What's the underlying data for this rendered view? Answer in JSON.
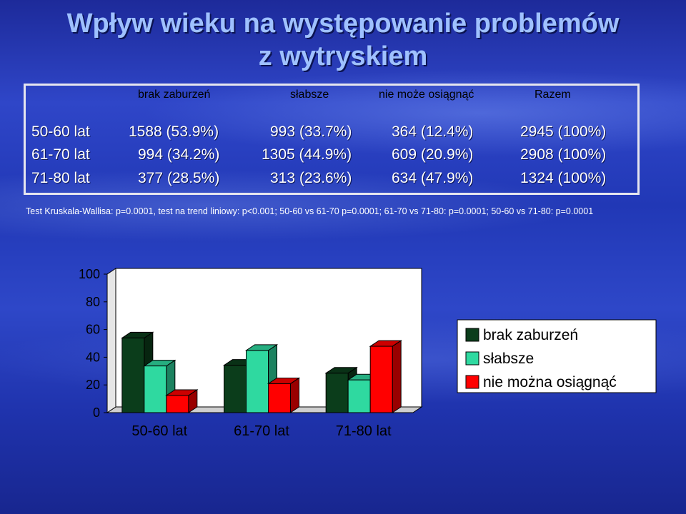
{
  "title_line1": "Wpływ wieku na występowanie problemów",
  "title_line2": "z wytryskiem",
  "table": {
    "headers": [
      "brak zaburzeń",
      "słabsze",
      "nie może osiągnąć",
      "Razem"
    ],
    "rows": [
      {
        "label": "50-60 lat",
        "c1": "1588 (53.9%)",
        "c2": "993 (33.7%)",
        "c3": "364 (12.4%)",
        "total": "2945 (100%)"
      },
      {
        "label": "61-70 lat",
        "c1": "994 (34.2%)",
        "c2": "1305 (44.9%)",
        "c3": "609 (20.9%)",
        "total": "2908 (100%)"
      },
      {
        "label": "71-80 lat",
        "c1": "377 (28.5%)",
        "c2": "313 (23.6%)",
        "c3": "634 (47.9%)",
        "total": "1324 (100%)"
      }
    ]
  },
  "note": "Test Kruskala-Wallisa: p=0.0001, test na trend liniowy: p<0.001;  50-60 vs 61-70 p=0.0001; 61-70 vs 71-80: p=0.0001; 50-60 vs 71-80: p=0.0001",
  "colors": {
    "series1": "#0b3d1b",
    "series2": "#2fd9a0",
    "series3": "#ff0000"
  },
  "chart_data": {
    "type": "bar",
    "categories": [
      "50-60 lat",
      "61-70 lat",
      "71-80 lat"
    ],
    "series": [
      {
        "name": "brak zaburzeń",
        "values": [
          53.9,
          34.2,
          28.5
        ]
      },
      {
        "name": "słabsze",
        "values": [
          33.7,
          44.9,
          23.6
        ]
      },
      {
        "name": "nie można osiągnąć",
        "values": [
          12.4,
          20.9,
          47.9
        ]
      }
    ],
    "yticks": [
      "0",
      "20",
      "40",
      "60",
      "80",
      "100"
    ],
    "ylim": [
      0,
      100
    ],
    "legend_position": "right",
    "grid": false,
    "three_d": true
  }
}
